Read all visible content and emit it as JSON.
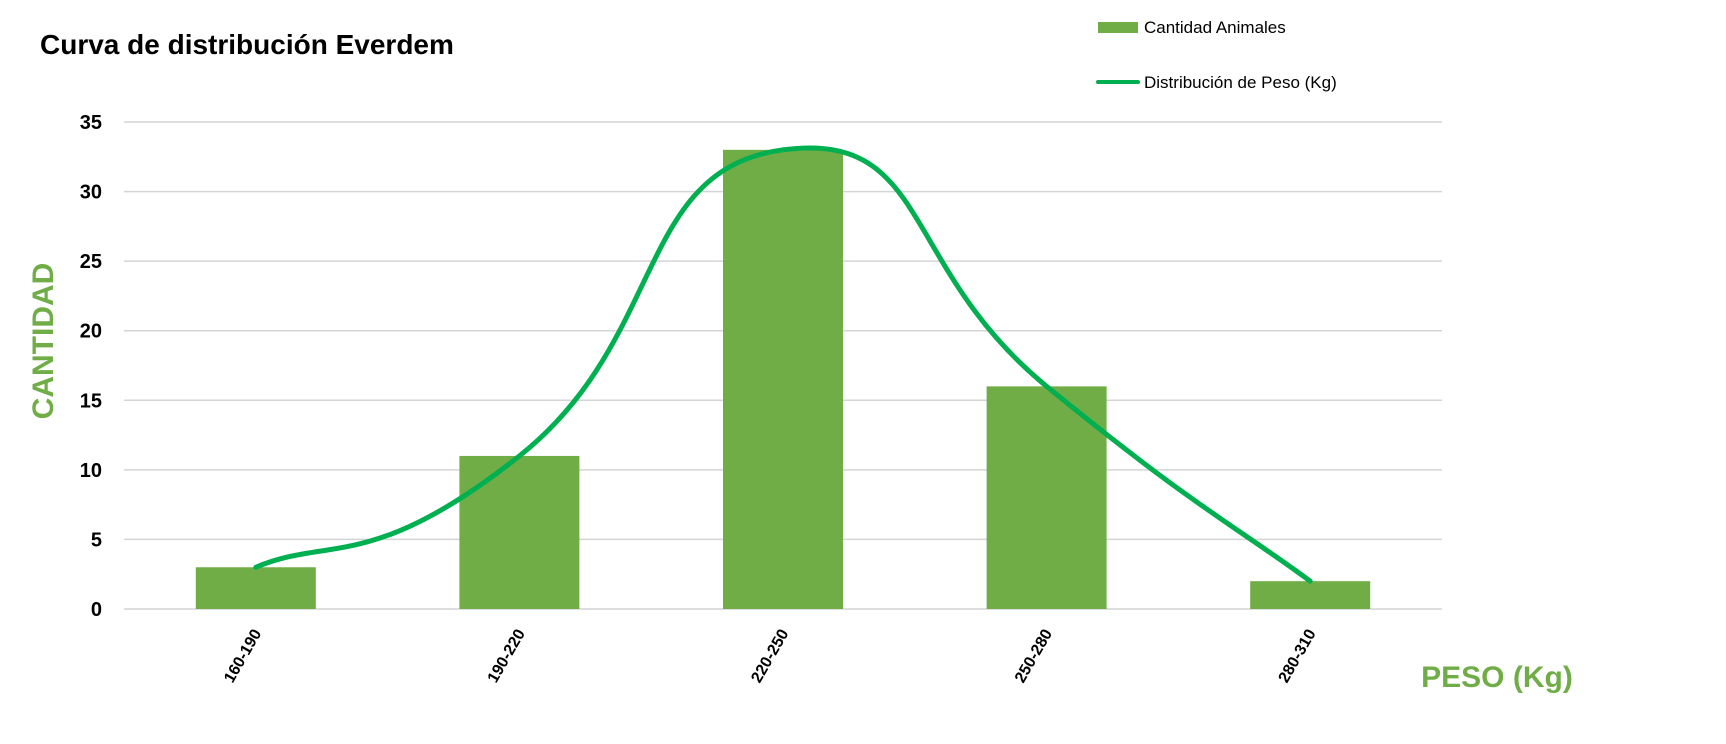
{
  "chart_data": {
    "type": "bar",
    "title": "Curva de distribución Everdem",
    "xlabel": "PESO (Kg)",
    "ylabel": "CANTIDAD",
    "categories": [
      "160-190",
      "190-220",
      "220-250",
      "250-280",
      "280-310"
    ],
    "series": [
      {
        "name": "Cantidad Animales",
        "type": "bar",
        "values": [
          3,
          11,
          33,
          16,
          2
        ],
        "color": "#70ad47"
      },
      {
        "name": "Distribución de Peso (Kg)",
        "type": "line",
        "smooth": true,
        "values": [
          3,
          11,
          33,
          16,
          2
        ],
        "color": "#00b050"
      }
    ],
    "ylim": [
      0,
      35
    ],
    "yticks": [
      "0",
      "5",
      "10",
      "15",
      "20",
      "25",
      "30",
      "35"
    ],
    "grid": true,
    "legend_position": "top-right",
    "axis_title_color": "#70ad47"
  }
}
